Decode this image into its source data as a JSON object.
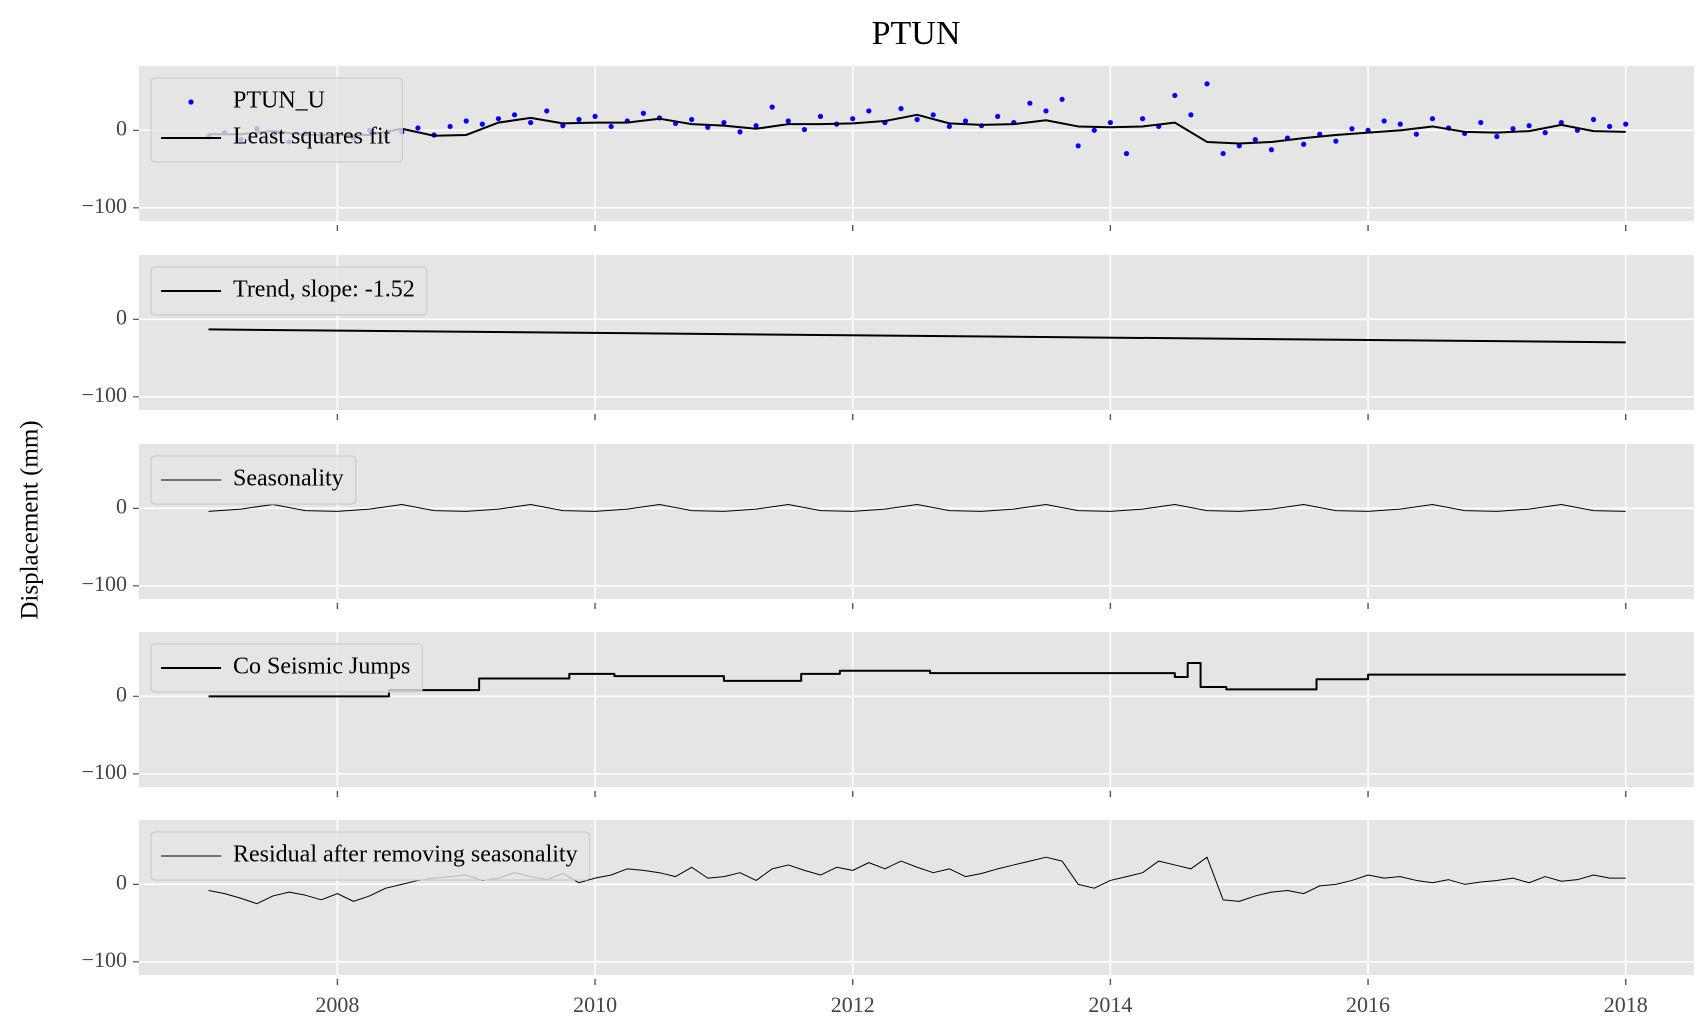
{
  "chart_data": [
    {
      "type": "line",
      "title": "PTUN",
      "xlim": [
        2006.46,
        2018.53
      ],
      "xticks": [
        2008,
        2010,
        2012,
        2014,
        2016,
        2018
      ],
      "ylim": [
        -117,
        83
      ],
      "yticks": [
        {
          "value": -100,
          "label": "−100"
        },
        0
      ],
      "grid": true,
      "legend": "upper left",
      "series": [
        {
          "name": "PTUN_U",
          "type": "scatter",
          "color": "#0000ff",
          "x": [
            2007,
            2007.125,
            2007.25,
            2007.375,
            2007.5,
            2007.625,
            2007.75,
            2007.875,
            2008,
            2008.125,
            2008.25,
            2008.375,
            2008.5,
            2008.625,
            2008.75,
            2008.875,
            2009,
            2009.125,
            2009.25,
            2009.375,
            2009.5,
            2009.625,
            2009.75,
            2009.875,
            2010,
            2010.125,
            2010.25,
            2010.375,
            2010.5,
            2010.625,
            2010.75,
            2010.875,
            2011,
            2011.125,
            2011.25,
            2011.375,
            2011.5,
            2011.625,
            2011.75,
            2011.875,
            2012,
            2012.125,
            2012.25,
            2012.375,
            2012.5,
            2012.625,
            2012.75,
            2012.875,
            2013,
            2013.125,
            2013.25,
            2013.375,
            2013.5,
            2013.625,
            2013.75,
            2013.875,
            2014,
            2014.125,
            2014.25,
            2014.375,
            2014.5,
            2014.625,
            2014.75,
            2014.875,
            2015,
            2015.125,
            2015.25,
            2015.375,
            2015.5,
            2015.625,
            2015.75,
            2015.875,
            2016,
            2016.125,
            2016.25,
            2016.375,
            2016.5,
            2016.625,
            2016.75,
            2016.875,
            2017,
            2017.125,
            2017.25,
            2017.375,
            2017.5,
            2017.625,
            2017.75,
            2017.875,
            2018
          ],
          "values": [
            -8,
            -3,
            -12,
            2,
            -6,
            -15,
            -4,
            -9,
            -5,
            -10,
            0,
            -7,
            -2,
            3,
            -6,
            5,
            12,
            8,
            15,
            20,
            10,
            25,
            6,
            14,
            18,
            5,
            12,
            22,
            16,
            9,
            14,
            4,
            10,
            -2,
            6,
            30,
            12,
            1,
            18,
            8,
            15,
            25,
            10,
            28,
            14,
            20,
            5,
            12,
            6,
            18,
            10,
            35,
            25,
            40,
            -20,
            0,
            10,
            -30,
            15,
            5,
            45,
            20,
            60,
            -30,
            -20,
            -12,
            -25,
            -10,
            -18,
            -5,
            -14,
            2,
            0,
            12,
            8,
            -5,
            15,
            3,
            -4,
            10,
            -8,
            2,
            6,
            -3,
            10,
            0,
            14,
            5,
            8
          ]
        },
        {
          "name": "Least squares fit",
          "type": "line",
          "color": "#000000",
          "linewidth": 2,
          "x": [
            2007,
            2007.25,
            2007.5,
            2007.75,
            2008,
            2008.25,
            2008.5,
            2008.75,
            2009,
            2009.25,
            2009.5,
            2009.75,
            2010,
            2010.25,
            2010.5,
            2010.75,
            2011,
            2011.25,
            2011.5,
            2011.75,
            2012,
            2012.25,
            2012.5,
            2012.75,
            2013,
            2013.25,
            2013.5,
            2013.75,
            2014,
            2014.25,
            2014.5,
            2014.75,
            2015,
            2015.25,
            2015.5,
            2015.75,
            2016,
            2016.25,
            2016.5,
            2016.75,
            2017,
            2017.25,
            2017.5,
            2017.75,
            2018
          ],
          "values": [
            -5,
            -5,
            -1,
            -6,
            -6,
            -6,
            2,
            -7,
            -6,
            10,
            16,
            9,
            10,
            10,
            15,
            8,
            6,
            2,
            8,
            8,
            9,
            12,
            20,
            9,
            7,
            8,
            13,
            5,
            4,
            5,
            10,
            -15,
            -17,
            -15,
            -10,
            -6,
            -3,
            0,
            5,
            -2,
            -3,
            -1,
            7,
            -1,
            -2
          ]
        }
      ]
    },
    {
      "type": "line",
      "xlim": [
        2006.46,
        2018.53
      ],
      "xticks": [
        2008,
        2010,
        2012,
        2014,
        2016,
        2018
      ],
      "ylim": [
        -117,
        83
      ],
      "yticks": [
        {
          "value": -100,
          "label": "−100"
        },
        0
      ],
      "grid": true,
      "legend": "upper left",
      "series": [
        {
          "name": "Trend, slope: -1.52",
          "color": "#000000",
          "linewidth": 2,
          "x": [
            2007,
            2018
          ],
          "values": [
            -13,
            -29.7
          ]
        }
      ]
    },
    {
      "type": "line",
      "ylabel": "Displacement (mm)",
      "xlim": [
        2006.46,
        2018.53
      ],
      "xticks": [
        2008,
        2010,
        2012,
        2014,
        2016,
        2018
      ],
      "ylim": [
        -117,
        83
      ],
      "yticks": [
        {
          "value": -100,
          "label": "−100"
        },
        0
      ],
      "grid": true,
      "legend": "upper left",
      "series": [
        {
          "name": "Seasonality",
          "color": "#000000",
          "linewidth": 1,
          "x": [
            2007,
            2007.25,
            2007.5,
            2007.75,
            2008,
            2008.25,
            2008.5,
            2008.75,
            2009,
            2009.25,
            2009.5,
            2009.75,
            2010,
            2010.25,
            2010.5,
            2010.75,
            2011,
            2011.25,
            2011.5,
            2011.75,
            2012,
            2012.25,
            2012.5,
            2012.75,
            2013,
            2013.25,
            2013.5,
            2013.75,
            2014,
            2014.25,
            2014.5,
            2014.75,
            2015,
            2015.25,
            2015.5,
            2015.75,
            2016,
            2016.25,
            2016.5,
            2016.75,
            2017,
            2017.25,
            2017.5,
            2017.75,
            2018
          ],
          "values": [
            -4,
            -1,
            5,
            -3,
            -4,
            -1,
            5,
            -3,
            -4,
            -1,
            5,
            -3,
            -4,
            -1,
            5,
            -3,
            -4,
            -1,
            5,
            -3,
            -4,
            -1,
            5,
            -3,
            -4,
            -1,
            5,
            -3,
            -4,
            -1,
            5,
            -3,
            -4,
            -1,
            5,
            -3,
            -4,
            -1,
            5,
            -3,
            -4,
            -1,
            5,
            -3,
            -4
          ]
        }
      ]
    },
    {
      "type": "line",
      "xlim": [
        2006.46,
        2018.53
      ],
      "xticks": [
        2008,
        2010,
        2012,
        2014,
        2016,
        2018
      ],
      "ylim": [
        -117,
        83
      ],
      "yticks": [
        {
          "value": -100,
          "label": "−100"
        },
        0
      ],
      "grid": true,
      "legend": "upper left",
      "series": [
        {
          "name": "Co Seismic Jumps",
          "color": "#000000",
          "linewidth": 2,
          "x": [
            2007,
            2008.4,
            2008.4,
            2009.1,
            2009.1,
            2009.8,
            2009.8,
            2010.15,
            2010.15,
            2011.0,
            2011.0,
            2011.6,
            2011.6,
            2011.9,
            2011.9,
            2012.6,
            2012.6,
            2014.5,
            2014.5,
            2014.6,
            2014.6,
            2014.7,
            2014.7,
            2014.9,
            2014.9,
            2015.6,
            2015.6,
            2016.0,
            2016.0,
            2018.0
          ],
          "values": [
            0,
            0,
            8,
            8,
            23,
            23,
            29,
            29,
            26,
            26,
            20,
            20,
            29,
            29,
            33,
            33,
            30,
            30,
            25,
            25,
            43,
            43,
            12,
            12,
            9,
            9,
            22,
            22,
            28,
            28
          ]
        }
      ]
    },
    {
      "type": "line",
      "xlim": [
        2006.46,
        2018.53
      ],
      "xticks": [
        2008,
        2010,
        2012,
        2014,
        2016,
        2018
      ],
      "ylim": [
        -117,
        83
      ],
      "yticks": [
        {
          "value": -100,
          "label": "−100"
        },
        0
      ],
      "grid": true,
      "legend": "upper left",
      "series": [
        {
          "name": "Residual after removing seasonality",
          "color": "#000000",
          "linewidth": 1,
          "x": [
            2007,
            2007.125,
            2007.25,
            2007.375,
            2007.5,
            2007.625,
            2007.75,
            2007.875,
            2008,
            2008.125,
            2008.25,
            2008.375,
            2008.5,
            2008.625,
            2008.75,
            2008.875,
            2009,
            2009.125,
            2009.25,
            2009.375,
            2009.5,
            2009.625,
            2009.75,
            2009.875,
            2010,
            2010.125,
            2010.25,
            2010.375,
            2010.5,
            2010.625,
            2010.75,
            2010.875,
            2011,
            2011.125,
            2011.25,
            2011.375,
            2011.5,
            2011.625,
            2011.75,
            2011.875,
            2012,
            2012.125,
            2012.25,
            2012.375,
            2012.5,
            2012.625,
            2012.75,
            2012.875,
            2013,
            2013.125,
            2013.25,
            2013.375,
            2013.5,
            2013.625,
            2013.75,
            2013.875,
            2014,
            2014.125,
            2014.25,
            2014.375,
            2014.5,
            2014.625,
            2014.75,
            2014.875,
            2015,
            2015.125,
            2015.25,
            2015.375,
            2015.5,
            2015.625,
            2015.75,
            2015.875,
            2016,
            2016.125,
            2016.25,
            2016.375,
            2016.5,
            2016.625,
            2016.75,
            2016.875,
            2017,
            2017.125,
            2017.25,
            2017.375,
            2017.5,
            2017.625,
            2017.75,
            2017.875,
            2018
          ],
          "values": [
            -8,
            -12,
            -18,
            -25,
            -15,
            -10,
            -14,
            -20,
            -12,
            -22,
            -15,
            -5,
            0,
            5,
            8,
            10,
            12,
            5,
            8,
            15,
            10,
            6,
            14,
            2,
            8,
            12,
            20,
            18,
            15,
            10,
            22,
            8,
            10,
            15,
            5,
            20,
            25,
            18,
            12,
            22,
            18,
            28,
            20,
            30,
            22,
            15,
            20,
            10,
            14,
            20,
            25,
            30,
            35,
            30,
            0,
            -5,
            5,
            10,
            15,
            30,
            25,
            20,
            35,
            -20,
            -22,
            -15,
            -10,
            -8,
            -12,
            -2,
            0,
            5,
            12,
            8,
            10,
            5,
            2,
            6,
            0,
            3,
            5,
            8,
            2,
            10,
            4,
            6,
            12,
            8,
            8
          ]
        }
      ]
    }
  ]
}
